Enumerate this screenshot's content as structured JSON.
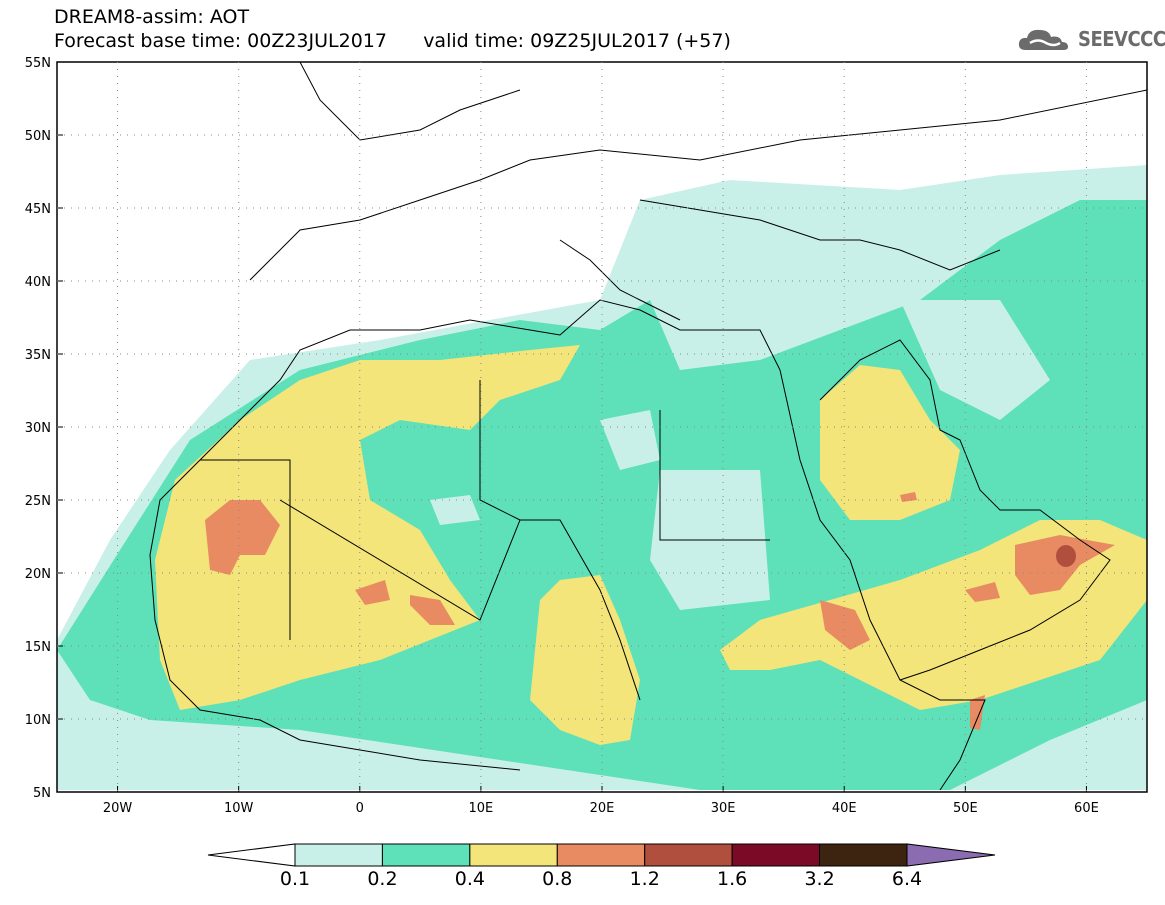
{
  "header": {
    "title": "DREAM8-assim: AOT",
    "subtitle": "Forecast base time: 00Z23JUL2017      valid time: 09Z25JUL2017 (+57)",
    "logo_text": "SEEVCCC"
  },
  "map": {
    "lon_range": [
      -25,
      65
    ],
    "lat_range": [
      5,
      55
    ],
    "lat_ticks": [
      "55N",
      "50N",
      "45N",
      "40N",
      "35N",
      "30N",
      "25N",
      "20N",
      "15N",
      "10N",
      "5N"
    ],
    "lon_ticks": [
      "20W",
      "10W",
      "0",
      "10E",
      "20E",
      "30E",
      "40E",
      "50E",
      "60E"
    ]
  },
  "colorbar": {
    "labels": [
      "0.1",
      "0.2",
      "0.4",
      "0.8",
      "1.2",
      "1.6",
      "3.2",
      "6.4"
    ],
    "colors": [
      "#ffffff",
      "#c8f0e8",
      "#5ee0b8",
      "#f3e57a",
      "#e98b62",
      "#b14f3e",
      "#7a0a25",
      "#3d2410",
      "#8c6cb0"
    ]
  }
}
